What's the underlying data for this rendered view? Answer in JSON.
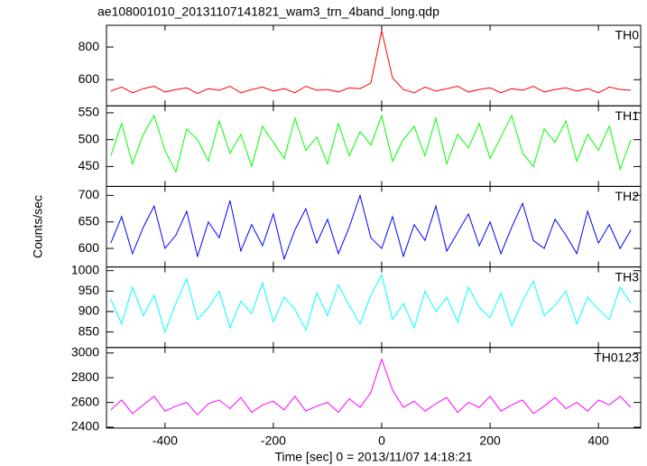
{
  "chart_data": {
    "type": "line",
    "title": "ae108001010_20131107141821_wam3_trn_4band_long.qdp",
    "xlabel": "Time [sec] 0 = 2013/11/07 14:18:21",
    "ylabel": "Counts/sec",
    "xlim": [
      -508,
      478
    ],
    "xticks": [
      -400,
      -200,
      0,
      200,
      400
    ],
    "x": [
      -500,
      -480,
      -460,
      -440,
      -420,
      -400,
      -380,
      -360,
      -340,
      -320,
      -300,
      -280,
      -260,
      -240,
      -220,
      -200,
      -180,
      -160,
      -140,
      -120,
      -100,
      -80,
      -60,
      -40,
      -20,
      0,
      20,
      40,
      60,
      80,
      100,
      120,
      140,
      160,
      180,
      200,
      220,
      240,
      260,
      280,
      300,
      320,
      340,
      360,
      380,
      400,
      420,
      440,
      460
    ],
    "series": [
      {
        "name": "TH0",
        "color": "#ff0000",
        "ylim": [
          440,
          933
        ],
        "yticks": [
          600,
          800
        ],
        "values": [
          530,
          555,
          520,
          545,
          560,
          525,
          540,
          550,
          515,
          545,
          535,
          560,
          520,
          540,
          555,
          530,
          545,
          520,
          560,
          535,
          540,
          525,
          550,
          545,
          580,
          900,
          610,
          540,
          520,
          555,
          530,
          545,
          560,
          525,
          540,
          550,
          520,
          545,
          535,
          560,
          525,
          540,
          550,
          530,
          545,
          520,
          555,
          540,
          535
        ]
      },
      {
        "name": "TH1",
        "color": "#00ff00",
        "ylim": [
          413,
          563
        ],
        "yticks": [
          450,
          500,
          550
        ],
        "values": [
          470,
          530,
          455,
          510,
          545,
          480,
          440,
          520,
          500,
          460,
          535,
          475,
          510,
          450,
          525,
          495,
          465,
          540,
          480,
          505,
          455,
          530,
          470,
          515,
          490,
          545,
          460,
          500,
          525,
          470,
          540,
          455,
          510,
          485,
          530,
          465,
          505,
          545,
          475,
          450,
          520,
          495,
          535,
          460,
          510,
          480,
          525,
          445,
          500
        ]
      },
      {
        "name": "TH2",
        "color": "#0000ff",
        "ylim": [
          565,
          717
        ],
        "yticks": [
          600,
          650,
          700
        ],
        "values": [
          610,
          660,
          590,
          640,
          680,
          600,
          625,
          670,
          585,
          650,
          620,
          690,
          595,
          645,
          605,
          665,
          580,
          635,
          675,
          610,
          655,
          590,
          640,
          700,
          620,
          600,
          660,
          585,
          645,
          615,
          680,
          595,
          630,
          665,
          605,
          650,
          590,
          640,
          685,
          615,
          600,
          655,
          625,
          590,
          670,
          610,
          645,
          600,
          635
        ]
      },
      {
        "name": "TH3",
        "color": "#00ffff",
        "ylim": [
          812,
          1009
        ],
        "yticks": [
          850,
          900,
          950,
          1000
        ],
        "values": [
          930,
          870,
          960,
          890,
          940,
          850,
          920,
          980,
          880,
          910,
          950,
          860,
          925,
          895,
          970,
          875,
          935,
          905,
          855,
          945,
          890,
          965,
          915,
          870,
          940,
          990,
          880,
          920,
          860,
          950,
          900,
          935,
          875,
          960,
          910,
          885,
          945,
          865,
          925,
          975,
          890,
          915,
          950,
          870,
          935,
          905,
          880,
          960,
          920
        ]
      },
      {
        "name": "TH0123",
        "color": "#ff00ff",
        "ylim": [
          2393,
          3044
        ],
        "yticks": [
          2400,
          2600,
          2800,
          3000
        ],
        "values": [
          2540,
          2620,
          2510,
          2580,
          2650,
          2530,
          2570,
          2600,
          2500,
          2590,
          2620,
          2550,
          2640,
          2520,
          2580,
          2610,
          2540,
          2650,
          2530,
          2570,
          2600,
          2520,
          2630,
          2560,
          2680,
          2950,
          2700,
          2560,
          2610,
          2530,
          2590,
          2640,
          2520,
          2600,
          2560,
          2650,
          2530,
          2580,
          2620,
          2510,
          2570,
          2640,
          2550,
          2600,
          2530,
          2620,
          2580,
          2650,
          2560
        ]
      }
    ]
  }
}
